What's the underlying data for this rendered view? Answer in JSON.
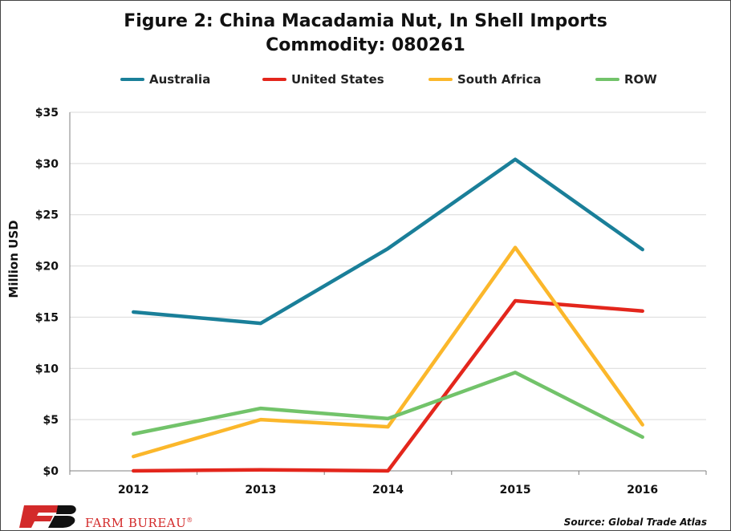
{
  "chart_data": {
    "type": "line",
    "title": "Figure 2: China Macadamia Nut, In Shell Imports",
    "subtitle": "Commodity: 080261",
    "ylabel": "Million USD",
    "categories": [
      "2012",
      "2013",
      "2014",
      "2015",
      "2016"
    ],
    "ylim": [
      0,
      35
    ],
    "yticks": [
      "$0",
      "$5",
      "$10",
      "$15",
      "$20",
      "$25",
      "$30",
      "$35"
    ],
    "grid": true,
    "legend_position": "top",
    "series": [
      {
        "name": "Australia",
        "color": "#1a7f99",
        "values": [
          15.5,
          14.4,
          21.7,
          30.4,
          21.6
        ]
      },
      {
        "name": "United States",
        "color": "#e3261c",
        "values": [
          0,
          0.1,
          0,
          16.6,
          15.6
        ]
      },
      {
        "name": "South Africa",
        "color": "#fbb72b",
        "values": [
          1.4,
          5.0,
          4.3,
          21.8,
          4.5
        ]
      },
      {
        "name": "ROW",
        "color": "#72c36a",
        "values": [
          3.6,
          6.1,
          5.1,
          9.6,
          3.3
        ]
      }
    ]
  },
  "footer": {
    "source": "Source: Global Trade Atlas",
    "brand": "FARM BUREAU",
    "brand_mark": "®"
  }
}
